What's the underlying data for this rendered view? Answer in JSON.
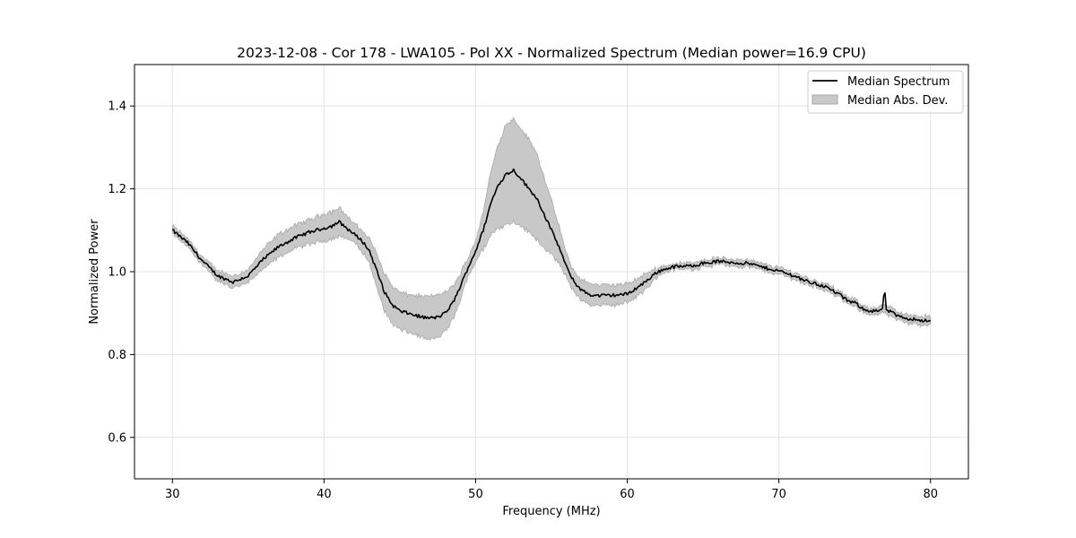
{
  "chart_data": {
    "type": "line",
    "title": "2023-12-08 - Cor 178 - LWA105 - Pol XX - Normalized Spectrum (Median power=16.9 CPU)",
    "xlabel": "Frequency (MHz)",
    "ylabel": "Normalized Power",
    "xlim": [
      27.5,
      82.5
    ],
    "ylim": [
      0.5,
      1.5
    ],
    "xticks": [
      30,
      40,
      50,
      60,
      70,
      80
    ],
    "yticks": [
      0.6,
      0.8,
      1.0,
      1.2,
      1.4
    ],
    "xtick_labels": [
      "30",
      "40",
      "50",
      "60",
      "70",
      "80"
    ],
    "ytick_labels": [
      "0.6",
      "0.8",
      "1.0",
      "1.2",
      "1.4"
    ],
    "grid": true,
    "legend_position": "top-right",
    "legend": [
      "Median Spectrum",
      "Median Abs. Dev."
    ],
    "colors": {
      "line": "#000000",
      "band_fill": "#c8c8c8",
      "band_edge": "#a8a8a8",
      "grid": "#e3e3e3"
    },
    "series": [
      {
        "name": "Median Spectrum",
        "x": [
          30,
          31,
          32,
          33,
          34,
          35,
          36,
          37,
          38,
          39,
          40,
          40.5,
          41,
          41.5,
          42,
          42.5,
          43,
          43.5,
          44,
          44.5,
          45,
          45.5,
          46,
          46.5,
          47,
          47.5,
          48,
          48.5,
          49,
          49.5,
          50,
          50.5,
          51,
          51.5,
          52,
          52.5,
          53,
          53.5,
          54,
          54.5,
          55,
          55.5,
          56,
          56.5,
          57,
          57.5,
          58,
          59,
          60,
          61,
          62,
          63,
          64,
          65,
          66,
          67,
          68,
          69,
          70,
          71,
          72,
          73,
          74,
          74.5,
          75,
          75.5,
          76,
          76.5,
          77,
          77.5,
          78,
          79,
          80
        ],
        "y": [
          1.1,
          1.07,
          1.025,
          0.99,
          0.975,
          0.99,
          1.03,
          1.06,
          1.08,
          1.095,
          1.105,
          1.11,
          1.12,
          1.105,
          1.09,
          1.075,
          1.05,
          1.0,
          0.95,
          0.92,
          0.905,
          0.9,
          0.895,
          0.89,
          0.888,
          0.89,
          0.9,
          0.925,
          0.965,
          1.01,
          1.05,
          1.1,
          1.165,
          1.21,
          1.235,
          1.245,
          1.225,
          1.2,
          1.18,
          1.14,
          1.1,
          1.06,
          1.01,
          0.975,
          0.955,
          0.945,
          0.942,
          0.943,
          0.946,
          0.97,
          1.0,
          1.012,
          1.013,
          1.02,
          1.025,
          1.022,
          1.02,
          1.01,
          1.002,
          0.99,
          0.975,
          0.965,
          0.945,
          0.93,
          0.925,
          0.912,
          0.905,
          0.905,
          0.91,
          0.9,
          0.89,
          0.885,
          0.88
        ],
        "band_lower": [
          1.09,
          1.06,
          1.015,
          0.978,
          0.96,
          0.975,
          1.005,
          1.035,
          1.055,
          1.065,
          1.075,
          1.08,
          1.085,
          1.08,
          1.07,
          1.05,
          1.02,
          0.96,
          0.905,
          0.875,
          0.86,
          0.855,
          0.848,
          0.84,
          0.835,
          0.84,
          0.855,
          0.885,
          0.93,
          0.99,
          1.025,
          1.055,
          1.09,
          1.105,
          1.115,
          1.12,
          1.11,
          1.095,
          1.08,
          1.06,
          1.04,
          1.02,
          0.985,
          0.95,
          0.93,
          0.92,
          0.918,
          0.92,
          0.925,
          0.95,
          0.99,
          1.005,
          1.005,
          1.012,
          1.017,
          1.014,
          1.012,
          1.002,
          0.994,
          0.982,
          0.967,
          0.957,
          0.937,
          0.922,
          0.917,
          0.904,
          0.897,
          0.897,
          0.9,
          0.89,
          0.88,
          0.875,
          0.87
        ],
        "band_upper": [
          1.11,
          1.08,
          1.035,
          1.002,
          0.99,
          1.005,
          1.055,
          1.09,
          1.11,
          1.125,
          1.14,
          1.145,
          1.155,
          1.135,
          1.115,
          1.1,
          1.08,
          1.04,
          0.995,
          0.965,
          0.95,
          0.945,
          0.943,
          0.94,
          0.94,
          0.945,
          0.95,
          0.965,
          0.995,
          1.035,
          1.075,
          1.145,
          1.24,
          1.31,
          1.355,
          1.37,
          1.345,
          1.32,
          1.29,
          1.23,
          1.17,
          1.11,
          1.04,
          1.0,
          0.98,
          0.972,
          0.968,
          0.968,
          0.97,
          0.99,
          1.01,
          1.019,
          1.021,
          1.028,
          1.033,
          1.03,
          1.028,
          1.018,
          1.01,
          0.998,
          0.983,
          0.973,
          0.953,
          0.938,
          0.933,
          0.92,
          0.913,
          0.913,
          0.92,
          0.91,
          0.9,
          0.895,
          0.89
        ]
      }
    ]
  }
}
